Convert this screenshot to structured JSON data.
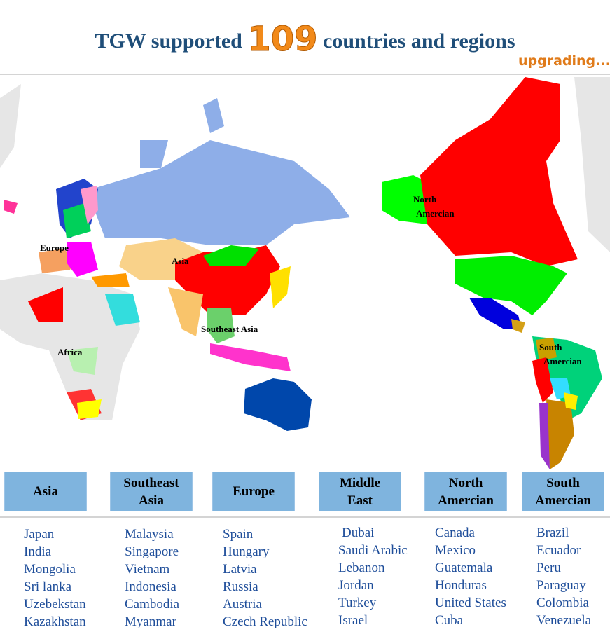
{
  "header": {
    "title_before": "TGW supported",
    "count": 109,
    "title_after": "countries and regions",
    "status": "upgrading..."
  },
  "map": {
    "labels": [
      {
        "lines": [
          "North",
          "Amercian"
        ]
      },
      {
        "lines": [
          "Europe"
        ]
      },
      {
        "lines": [
          "Asia"
        ]
      },
      {
        "lines": [
          "Southeast Asia"
        ]
      },
      {
        "lines": [
          "Africa"
        ]
      },
      {
        "lines": [
          "South",
          "Amercian"
        ]
      }
    ]
  },
  "regions": [
    {
      "header": [
        "Asia"
      ],
      "items": [
        "Japan",
        "India",
        "Mongolia",
        "Sri lanka",
        "Uzebekstan",
        "Kazakhstan"
      ]
    },
    {
      "header": [
        "Southeast",
        "Asia"
      ],
      "items": [
        "Malaysia",
        "Singapore",
        "Vietnam",
        "Indonesia",
        "Cambodia",
        "Myanmar"
      ]
    },
    {
      "header": [
        "Europe"
      ],
      "items": [
        "Spain",
        "Hungary",
        "Latvia",
        "Russia",
        "Austria",
        "Czech Republic"
      ]
    },
    {
      "header": [
        "Middle",
        "East"
      ],
      "items": [
        "Dubai",
        "Saudi Arabic",
        "Lebanon",
        "Jordan",
        "Turkey",
        "Israel"
      ]
    },
    {
      "header": [
        "North",
        "Amercian"
      ],
      "items": [
        "Canada",
        "Mexico",
        "Guatemala",
        "Honduras",
        "United States",
        "Cuba"
      ]
    },
    {
      "header": [
        "South",
        "Amercian"
      ],
      "items": [
        "Brazil",
        "Ecuador",
        "Peru",
        "Paraguay",
        "Colombia",
        "Venezuela"
      ]
    }
  ]
}
